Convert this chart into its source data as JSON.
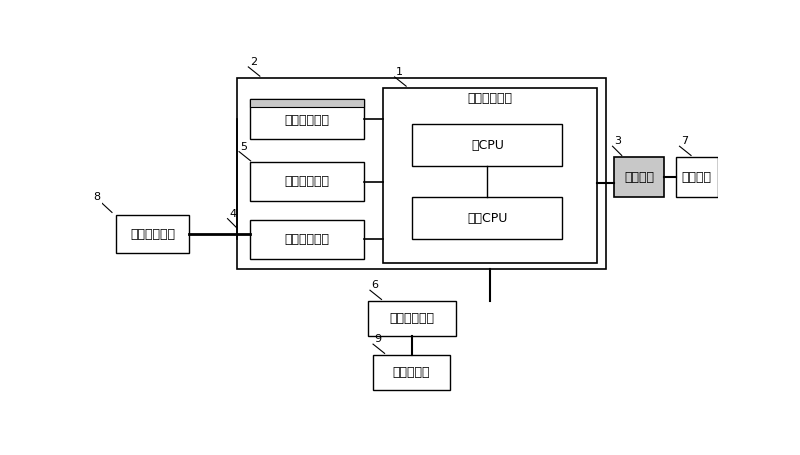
{
  "bg_color": "#ffffff",
  "lc": "#000000",
  "gray_fill": "#c8c8c8",
  "white_fill": "#ffffff",
  "labels": {
    "weichuli": "微处理器模块",
    "shujucaiji": "数据采集模块",
    "shujucunchu": "数据存储模块",
    "shujutongxun": "数据通讯模块",
    "zhucpu": "主CPU",
    "redundcpu": "兑余CPU",
    "qudong": "驱动模块",
    "zhixing": "执行机构",
    "dianyuan": "电源管理模块",
    "jiaoliu": "交流发电机",
    "suizuan": "随锓测量工具"
  },
  "outer": [
    175,
    30,
    480,
    248
  ],
  "mp": [
    365,
    43,
    278,
    228
  ],
  "caiji": [
    192,
    58,
    148,
    52
  ],
  "cunchu": [
    192,
    140,
    148,
    50
  ],
  "tongxun": [
    192,
    215,
    148,
    50
  ],
  "zhucpu": [
    403,
    90,
    195,
    55
  ],
  "redcpu": [
    403,
    185,
    195,
    55
  ],
  "qudong": [
    665,
    133,
    65,
    52
  ],
  "zhixing": [
    745,
    133,
    55,
    52
  ],
  "suizuan": [
    18,
    208,
    95,
    50
  ],
  "dianyuan": [
    345,
    320,
    115,
    45
  ],
  "jiaoliu": [
    352,
    390,
    100,
    45
  ]
}
